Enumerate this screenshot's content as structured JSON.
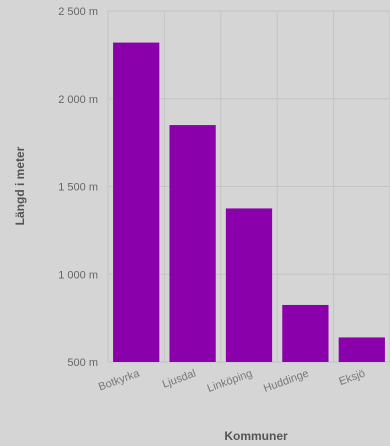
{
  "chart_data": {
    "type": "bar",
    "categories": [
      "Botkyrka",
      "Ljusdal",
      "Linköping",
      "Huddinge",
      "Eksjö"
    ],
    "values": [
      2320,
      1850,
      1375,
      825,
      640
    ],
    "xlabel": "Kommuner",
    "ylabel": "Längd i meter",
    "ylim": [
      500,
      2500
    ],
    "yticks": [
      {
        "value": 500,
        "label": "500 m"
      },
      {
        "value": 1000,
        "label": "1 000 m"
      },
      {
        "value": 1500,
        "label": "1 500 m"
      },
      {
        "value": 2000,
        "label": "2 000 m"
      },
      {
        "value": 2500,
        "label": "2 500 m"
      }
    ],
    "grid": true,
    "colors": {
      "bar": "#8a00aa",
      "grid": "#c4c4c4",
      "background": "#d5d5d5"
    }
  }
}
